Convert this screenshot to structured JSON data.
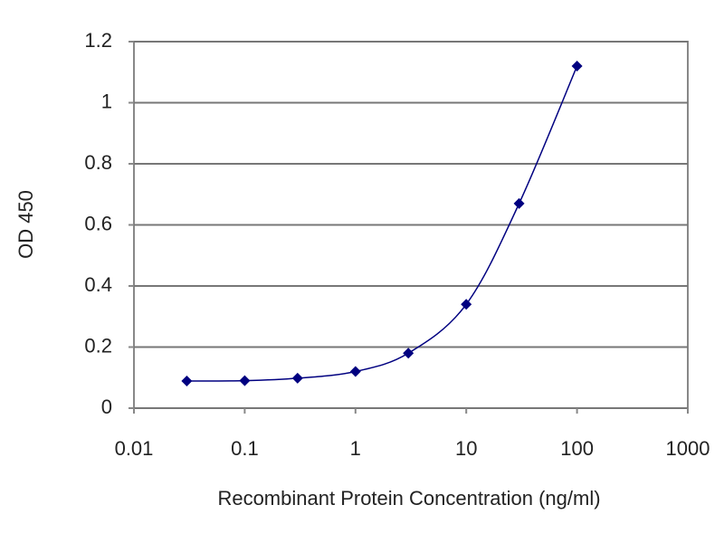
{
  "chart_data": {
    "type": "line",
    "xlabel": "Recombinant Protein Concentration (ng/ml)",
    "ylabel": "OD 450",
    "x": [
      0.03,
      0.1,
      0.3,
      1,
      3,
      10,
      30,
      100
    ],
    "series": [
      {
        "color": "#000080",
        "values": [
          0.089,
          0.09,
          0.098,
          0.12,
          0.18,
          0.34,
          0.67,
          1.12
        ]
      }
    ],
    "xscale": "log",
    "xlim": [
      0.01,
      1000
    ],
    "xticks": [
      0.01,
      0.1,
      1,
      10,
      100,
      1000
    ],
    "ylim": [
      0,
      1.2
    ],
    "yticks": [
      0,
      0.2,
      0.4,
      0.6,
      0.8,
      1,
      1.2
    ],
    "grid": true
  }
}
